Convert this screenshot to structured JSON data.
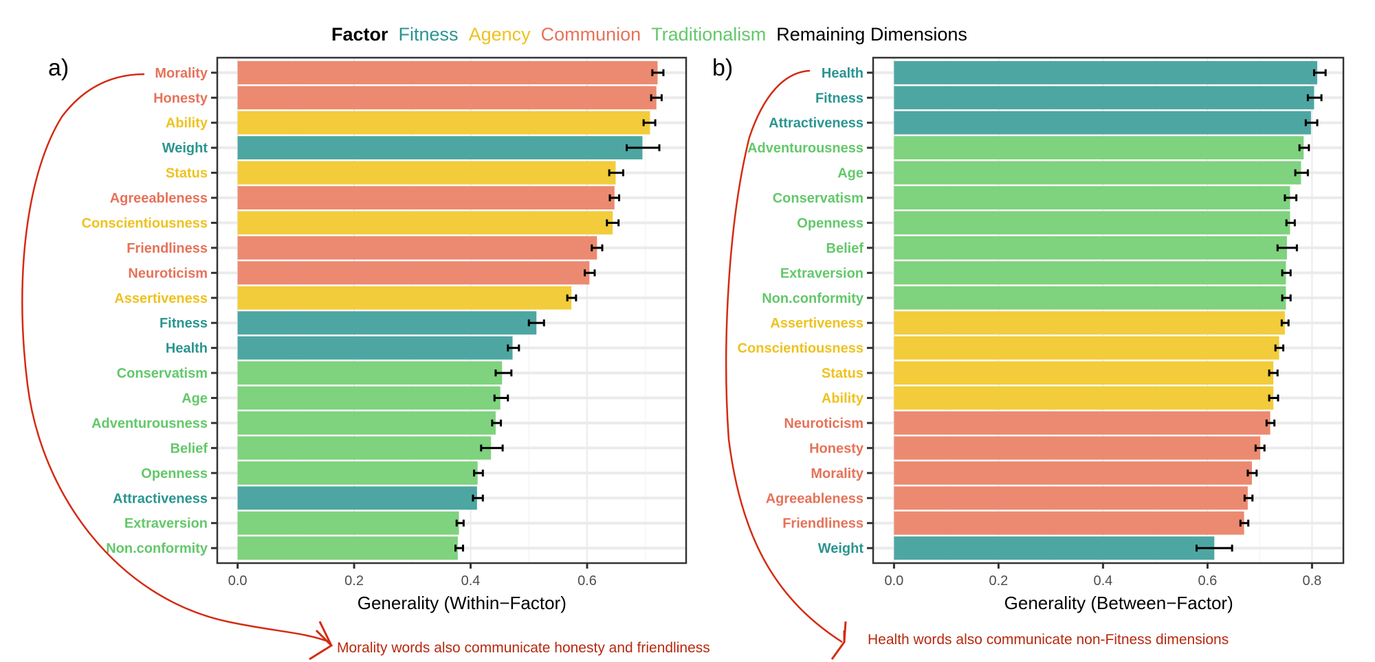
{
  "legend": {
    "title": "Factor",
    "items": [
      {
        "label": "Fitness",
        "color": "#2a9590"
      },
      {
        "label": "Agency",
        "color": "#eec21f"
      },
      {
        "label": "Communion",
        "color": "#e6725a"
      },
      {
        "label": "Traditionalism",
        "color": "#63c86a"
      },
      {
        "label": "Remaining Dimensions",
        "color": "#000000"
      }
    ]
  },
  "factor_colors": {
    "Fitness": {
      "bar": "#4ea6a2",
      "text": "#2a9590"
    },
    "Agency": {
      "bar": "#f2cc3a",
      "text": "#eec21f"
    },
    "Communion": {
      "bar": "#eb8a71",
      "text": "#e6725a"
    },
    "Traditionalism": {
      "bar": "#7fd27e",
      "text": "#63c86a"
    }
  },
  "annotations": {
    "a": "Morality words also communicate honesty and friendliness",
    "b": "Health words also communicate non-Fitness dimensions",
    "color": "#b7290f"
  },
  "chart_data": [
    {
      "panel": "a)",
      "type": "bar",
      "orientation": "horizontal",
      "xlabel": "Generality (Within−Factor)",
      "xlim": [
        -0.035,
        0.77
      ],
      "xticks": [
        "0.0",
        "0.2",
        "0.4",
        "0.6"
      ],
      "xtick_values": [
        0.0,
        0.2,
        0.4,
        0.6
      ],
      "grid": true,
      "bars": [
        {
          "label": "Morality",
          "factor": "Communion",
          "value": 0.721,
          "lo": 0.712,
          "hi": 0.731
        },
        {
          "label": "Honesty",
          "factor": "Communion",
          "value": 0.719,
          "lo": 0.71,
          "hi": 0.728
        },
        {
          "label": "Ability",
          "factor": "Agency",
          "value": 0.708,
          "lo": 0.697,
          "hi": 0.717
        },
        {
          "label": "Weight",
          "factor": "Fitness",
          "value": 0.695,
          "lo": 0.668,
          "hi": 0.724
        },
        {
          "label": "Status",
          "factor": "Agency",
          "value": 0.649,
          "lo": 0.638,
          "hi": 0.662
        },
        {
          "label": "Agreeableness",
          "factor": "Communion",
          "value": 0.647,
          "lo": 0.639,
          "hi": 0.655
        },
        {
          "label": "Conscientiousness",
          "factor": "Agency",
          "value": 0.644,
          "lo": 0.634,
          "hi": 0.654
        },
        {
          "label": "Friendliness",
          "factor": "Communion",
          "value": 0.617,
          "lo": 0.608,
          "hi": 0.626
        },
        {
          "label": "Neuroticism",
          "factor": "Communion",
          "value": 0.604,
          "lo": 0.596,
          "hi": 0.613
        },
        {
          "label": "Assertiveness",
          "factor": "Agency",
          "value": 0.573,
          "lo": 0.566,
          "hi": 0.581
        },
        {
          "label": "Fitness",
          "factor": "Fitness",
          "value": 0.513,
          "lo": 0.5,
          "hi": 0.526
        },
        {
          "label": "Health",
          "factor": "Fitness",
          "value": 0.472,
          "lo": 0.464,
          "hi": 0.483
        },
        {
          "label": "Conservatism",
          "factor": "Traditionalism",
          "value": 0.454,
          "lo": 0.443,
          "hi": 0.47
        },
        {
          "label": "Age",
          "factor": "Traditionalism",
          "value": 0.451,
          "lo": 0.441,
          "hi": 0.464
        },
        {
          "label": "Adventurousness",
          "factor": "Traditionalism",
          "value": 0.443,
          "lo": 0.437,
          "hi": 0.452
        },
        {
          "label": "Belief",
          "factor": "Traditionalism",
          "value": 0.435,
          "lo": 0.418,
          "hi": 0.455
        },
        {
          "label": "Openness",
          "factor": "Traditionalism",
          "value": 0.412,
          "lo": 0.406,
          "hi": 0.421
        },
        {
          "label": "Attractiveness",
          "factor": "Fitness",
          "value": 0.411,
          "lo": 0.404,
          "hi": 0.421
        },
        {
          "label": "Extraversion",
          "factor": "Traditionalism",
          "value": 0.38,
          "lo": 0.376,
          "hi": 0.388
        },
        {
          "label": "Non.conformity",
          "factor": "Traditionalism",
          "value": 0.378,
          "lo": 0.374,
          "hi": 0.387
        }
      ]
    },
    {
      "panel": "b)",
      "type": "bar",
      "orientation": "horizontal",
      "xlabel": "Generality (Between−Factor)",
      "xlim": [
        -0.04,
        0.86
      ],
      "xticks": [
        "0.0",
        "0.2",
        "0.4",
        "0.6",
        "0.8"
      ],
      "xtick_values": [
        0.0,
        0.2,
        0.4,
        0.6,
        0.8
      ],
      "grid": true,
      "bars": [
        {
          "label": "Health",
          "factor": "Fitness",
          "value": 0.81,
          "lo": 0.804,
          "hi": 0.826
        },
        {
          "label": "Fitness",
          "factor": "Fitness",
          "value": 0.804,
          "lo": 0.792,
          "hi": 0.818
        },
        {
          "label": "Attractiveness",
          "factor": "Fitness",
          "value": 0.798,
          "lo": 0.788,
          "hi": 0.81
        },
        {
          "label": "Adventurousness",
          "factor": "Traditionalism",
          "value": 0.784,
          "lo": 0.776,
          "hi": 0.794
        },
        {
          "label": "Age",
          "factor": "Traditionalism",
          "value": 0.779,
          "lo": 0.768,
          "hi": 0.792
        },
        {
          "label": "Conservatism",
          "factor": "Traditionalism",
          "value": 0.758,
          "lo": 0.748,
          "hi": 0.77
        },
        {
          "label": "Openness",
          "factor": "Traditionalism",
          "value": 0.758,
          "lo": 0.751,
          "hi": 0.767
        },
        {
          "label": "Belief",
          "factor": "Traditionalism",
          "value": 0.752,
          "lo": 0.734,
          "hi": 0.771
        },
        {
          "label": "Extraversion",
          "factor": "Traditionalism",
          "value": 0.75,
          "lo": 0.743,
          "hi": 0.759
        },
        {
          "label": "Non.conformity",
          "factor": "Traditionalism",
          "value": 0.75,
          "lo": 0.743,
          "hi": 0.759
        },
        {
          "label": "Assertiveness",
          "factor": "Agency",
          "value": 0.748,
          "lo": 0.742,
          "hi": 0.755
        },
        {
          "label": "Conscientiousness",
          "factor": "Agency",
          "value": 0.737,
          "lo": 0.73,
          "hi": 0.745
        },
        {
          "label": "Status",
          "factor": "Agency",
          "value": 0.726,
          "lo": 0.718,
          "hi": 0.734
        },
        {
          "label": "Ability",
          "factor": "Agency",
          "value": 0.726,
          "lo": 0.718,
          "hi": 0.735
        },
        {
          "label": "Neuroticism",
          "factor": "Communion",
          "value": 0.72,
          "lo": 0.713,
          "hi": 0.728
        },
        {
          "label": "Honesty",
          "factor": "Communion",
          "value": 0.701,
          "lo": 0.692,
          "hi": 0.709
        },
        {
          "label": "Morality",
          "factor": "Communion",
          "value": 0.685,
          "lo": 0.677,
          "hi": 0.694
        },
        {
          "label": "Agreeableness",
          "factor": "Communion",
          "value": 0.677,
          "lo": 0.671,
          "hi": 0.686
        },
        {
          "label": "Friendliness",
          "factor": "Communion",
          "value": 0.67,
          "lo": 0.663,
          "hi": 0.678
        },
        {
          "label": "Weight",
          "factor": "Fitness",
          "value": 0.613,
          "lo": 0.579,
          "hi": 0.647
        }
      ]
    }
  ]
}
